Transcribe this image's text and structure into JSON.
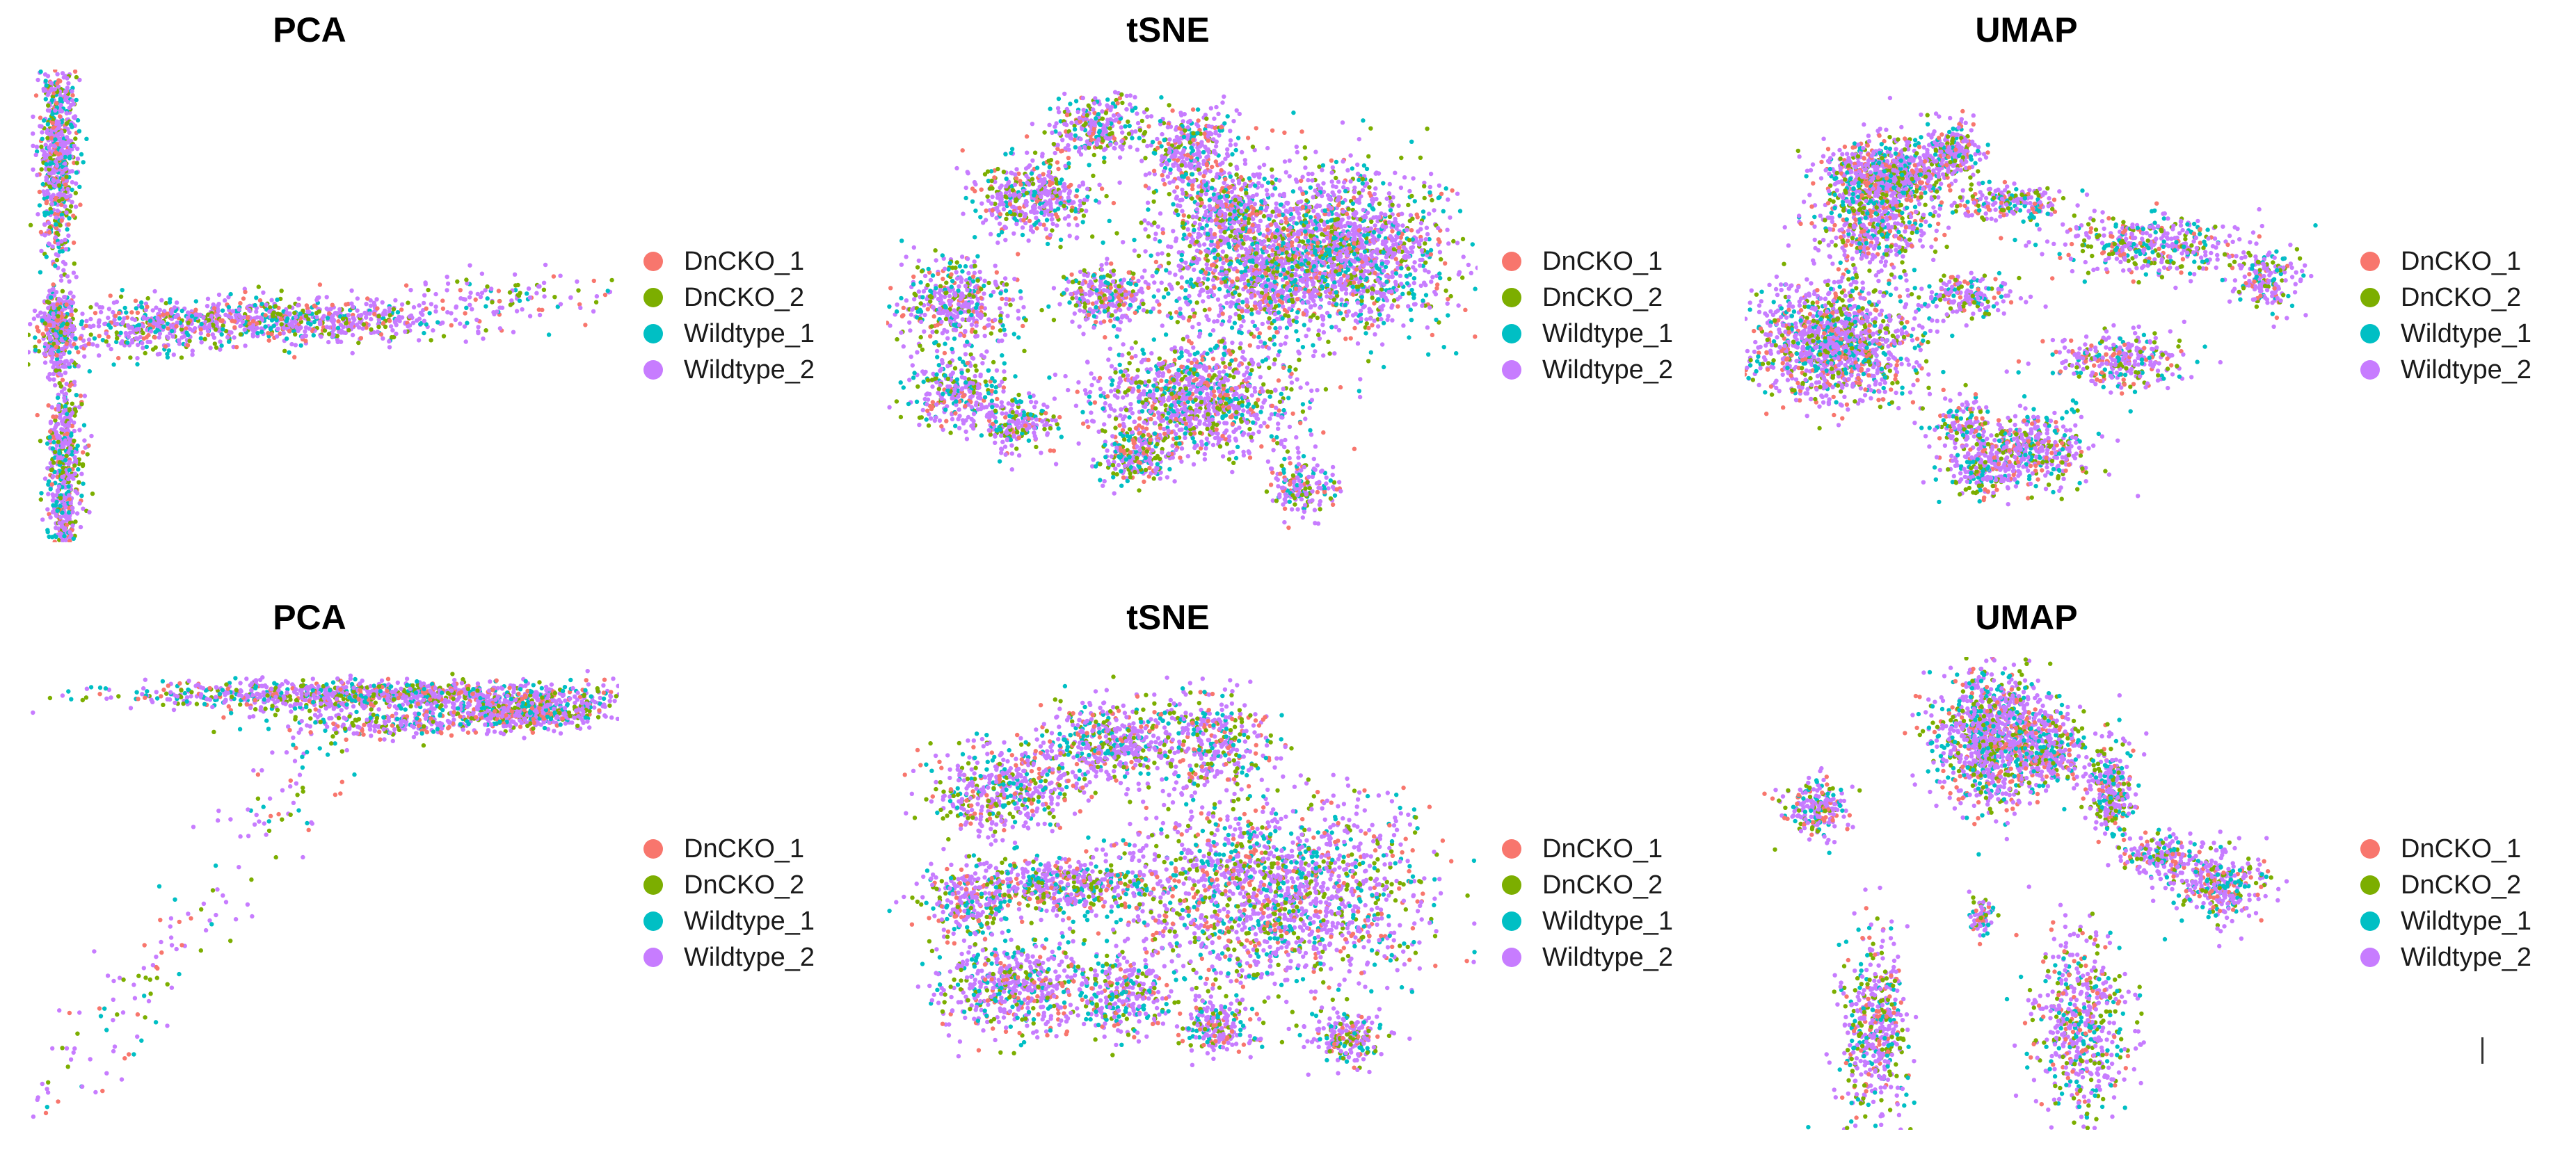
{
  "colors": {
    "DnCKO_1": "#F8766D",
    "DnCKO_2": "#7CAE00",
    "Wildtype_1": "#00BFC4",
    "Wildtype_2": "#C77CFF"
  },
  "legend": [
    "DnCKO_1",
    "DnCKO_2",
    "Wildtype_1",
    "Wildtype_2"
  ],
  "panels": [
    {
      "title": "PCA"
    },
    {
      "title": "tSNE"
    },
    {
      "title": "UMAP"
    },
    {
      "title": "PCA"
    },
    {
      "title": "tSNE"
    },
    {
      "title": "UMAP"
    }
  ],
  "chart_data": [
    {
      "type": "scatter",
      "title": "PCA",
      "xlabel": "",
      "ylabel": "",
      "series": [
        {
          "name": "DnCKO_1"
        },
        {
          "name": "DnCKO_2"
        },
        {
          "name": "Wildtype_1"
        },
        {
          "name": "Wildtype_2"
        }
      ],
      "x_range": [
        0,
        100
      ],
      "y_range": [
        0,
        100
      ],
      "clusters": [
        {
          "x": 5,
          "y": 82,
          "sx": 1.5,
          "sy": 12,
          "weight": 1.0
        },
        {
          "x": 6,
          "y": 15,
          "sx": 1.5,
          "sy": 13,
          "weight": 0.9
        },
        {
          "x": 5,
          "y": 45,
          "sx": 1.5,
          "sy": 4,
          "weight": 0.5
        },
        {
          "x": 45,
          "y": 47,
          "sx": 14,
          "sy": 2.2,
          "weight": 1.1
        },
        {
          "x": 20,
          "y": 45,
          "sx": 8,
          "sy": 3,
          "weight": 0.4
        },
        {
          "x": 80,
          "y": 52,
          "sx": 10,
          "sy": 2.5,
          "weight": 0.15
        }
      ],
      "grid": false,
      "legend_position": "right"
    },
    {
      "type": "scatter",
      "title": "tSNE",
      "xlabel": "",
      "ylabel": "",
      "series": [
        {
          "name": "DnCKO_1"
        },
        {
          "name": "DnCKO_2"
        },
        {
          "name": "Wildtype_1"
        },
        {
          "name": "Wildtype_2"
        }
      ],
      "x_range": [
        0,
        100
      ],
      "y_range": [
        0,
        100
      ],
      "clusters": [
        {
          "x": 65,
          "y": 60,
          "sx": 10,
          "sy": 9,
          "weight": 2.2
        },
        {
          "x": 80,
          "y": 62,
          "sx": 8,
          "sy": 8,
          "weight": 1.4
        },
        {
          "x": 52,
          "y": 30,
          "sx": 9,
          "sy": 6,
          "weight": 1.5
        },
        {
          "x": 25,
          "y": 73,
          "sx": 5,
          "sy": 4,
          "weight": 0.6
        },
        {
          "x": 35,
          "y": 88,
          "sx": 4,
          "sy": 3,
          "weight": 0.4
        },
        {
          "x": 52,
          "y": 82,
          "sx": 4,
          "sy": 5,
          "weight": 0.5
        },
        {
          "x": 12,
          "y": 50,
          "sx": 5,
          "sy": 5,
          "weight": 0.6
        },
        {
          "x": 37,
          "y": 52,
          "sx": 4,
          "sy": 3,
          "weight": 0.4
        },
        {
          "x": 12,
          "y": 32,
          "sx": 4,
          "sy": 4,
          "weight": 0.4
        },
        {
          "x": 22,
          "y": 25,
          "sx": 3,
          "sy": 3,
          "weight": 0.3
        },
        {
          "x": 42,
          "y": 18,
          "sx": 3,
          "sy": 3,
          "weight": 0.3
        },
        {
          "x": 70,
          "y": 12,
          "sx": 3,
          "sy": 3,
          "weight": 0.25
        },
        {
          "x": 58,
          "y": 70,
          "sx": 3,
          "sy": 3,
          "weight": 0.3
        }
      ],
      "grid": false,
      "legend_position": "right"
    },
    {
      "type": "scatter",
      "title": "UMAP",
      "xlabel": "",
      "ylabel": "",
      "series": [
        {
          "name": "DnCKO_1"
        },
        {
          "name": "DnCKO_2"
        },
        {
          "name": "Wildtype_1"
        },
        {
          "name": "Wildtype_2"
        }
      ],
      "x_range": [
        0,
        100
      ],
      "y_range": [
        0,
        100
      ],
      "clusters": [
        {
          "x": 15,
          "y": 42,
          "sx": 7,
          "sy": 6,
          "weight": 1.8
        },
        {
          "x": 22,
          "y": 70,
          "sx": 5,
          "sy": 7,
          "weight": 1.0
        },
        {
          "x": 25,
          "y": 78,
          "sx": 5,
          "sy": 3,
          "weight": 0.8
        },
        {
          "x": 35,
          "y": 83,
          "sx": 3,
          "sy": 3,
          "weight": 0.3
        },
        {
          "x": 45,
          "y": 72,
          "sx": 5,
          "sy": 2,
          "weight": 0.3
        },
        {
          "x": 38,
          "y": 52,
          "sx": 4,
          "sy": 2,
          "weight": 0.25
        },
        {
          "x": 68,
          "y": 63,
          "sx": 8,
          "sy": 3,
          "weight": 0.6
        },
        {
          "x": 88,
          "y": 55,
          "sx": 3,
          "sy": 3,
          "weight": 0.25
        },
        {
          "x": 63,
          "y": 38,
          "sx": 6,
          "sy": 3,
          "weight": 0.45
        },
        {
          "x": 48,
          "y": 20,
          "sx": 5,
          "sy": 4,
          "weight": 0.6
        },
        {
          "x": 40,
          "y": 15,
          "sx": 3,
          "sy": 3,
          "weight": 0.25
        },
        {
          "x": 37,
          "y": 25,
          "sx": 3,
          "sy": 3,
          "weight": 0.2
        }
      ],
      "grid": false,
      "legend_position": "right"
    },
    {
      "type": "scatter",
      "title": "PCA",
      "xlabel": "",
      "ylabel": "",
      "series": [
        {
          "name": "DnCKO_1"
        },
        {
          "name": "DnCKO_2"
        },
        {
          "name": "Wildtype_1"
        },
        {
          "name": "Wildtype_2"
        }
      ],
      "x_range": [
        0,
        100
      ],
      "y_range": [
        0,
        100
      ],
      "clusters": [
        {
          "x": 60,
          "y": 92,
          "sx": 22,
          "sy": 1.5,
          "weight": 1.6
        },
        {
          "x": 85,
          "y": 88,
          "sx": 6,
          "sy": 1.5,
          "weight": 0.6
        },
        {
          "x": 65,
          "y": 86,
          "sx": 10,
          "sy": 1.5,
          "weight": 0.4
        }
      ],
      "scatter_line": {
        "from": [
          2,
          2
        ],
        "to": [
          55,
          90
        ],
        "count": 180
      },
      "grid": false,
      "legend_position": "right"
    },
    {
      "type": "scatter",
      "title": "tSNE",
      "xlabel": "",
      "ylabel": "",
      "series": [
        {
          "name": "DnCKO_1"
        },
        {
          "name": "DnCKO_2"
        },
        {
          "name": "Wildtype_1"
        },
        {
          "name": "Wildtype_2"
        }
      ],
      "x_range": [
        0,
        100
      ],
      "y_range": [
        0,
        100
      ],
      "clusters": [
        {
          "x": 65,
          "y": 50,
          "sx": 13,
          "sy": 10,
          "weight": 2.6
        },
        {
          "x": 20,
          "y": 72,
          "sx": 6,
          "sy": 5,
          "weight": 0.7
        },
        {
          "x": 38,
          "y": 82,
          "sx": 6,
          "sy": 4,
          "weight": 0.7
        },
        {
          "x": 55,
          "y": 82,
          "sx": 5,
          "sy": 5,
          "weight": 0.5
        },
        {
          "x": 30,
          "y": 52,
          "sx": 8,
          "sy": 3,
          "weight": 0.7
        },
        {
          "x": 22,
          "y": 30,
          "sx": 7,
          "sy": 5,
          "weight": 0.8
        },
        {
          "x": 40,
          "y": 28,
          "sx": 4,
          "sy": 4,
          "weight": 0.4
        },
        {
          "x": 56,
          "y": 22,
          "sx": 3,
          "sy": 3,
          "weight": 0.3
        },
        {
          "x": 78,
          "y": 20,
          "sx": 3,
          "sy": 3,
          "weight": 0.3
        },
        {
          "x": 14,
          "y": 48,
          "sx": 4,
          "sy": 4,
          "weight": 0.4
        }
      ],
      "grid": false,
      "legend_position": "right"
    },
    {
      "type": "scatter",
      "title": "UMAP",
      "xlabel": "",
      "ylabel": "",
      "series": [
        {
          "name": "DnCKO_1"
        },
        {
          "name": "DnCKO_2"
        },
        {
          "name": "Wildtype_1"
        },
        {
          "name": "Wildtype_2"
        }
      ],
      "x_range": [
        0,
        100
      ],
      "y_range": [
        0,
        100
      ],
      "clusters": [
        {
          "x": 42,
          "y": 83,
          "sx": 5,
          "sy": 7,
          "weight": 1.6
        },
        {
          "x": 52,
          "y": 80,
          "sx": 3,
          "sy": 4,
          "weight": 0.4
        },
        {
          "x": 62,
          "y": 72,
          "sx": 2,
          "sy": 5,
          "weight": 0.4
        },
        {
          "x": 80,
          "y": 52,
          "sx": 4,
          "sy": 4,
          "weight": 0.5
        },
        {
          "x": 70,
          "y": 58,
          "sx": 3,
          "sy": 2,
          "weight": 0.25
        },
        {
          "x": 22,
          "y": 22,
          "sx": 3,
          "sy": 10,
          "weight": 0.7
        },
        {
          "x": 57,
          "y": 22,
          "sx": 4,
          "sy": 10,
          "weight": 0.8
        },
        {
          "x": 12,
          "y": 68,
          "sx": 3,
          "sy": 3,
          "weight": 0.3
        },
        {
          "x": 40,
          "y": 45,
          "sx": 1,
          "sy": 2,
          "weight": 0.1
        }
      ],
      "grid": false,
      "legend_position": "right"
    }
  ]
}
